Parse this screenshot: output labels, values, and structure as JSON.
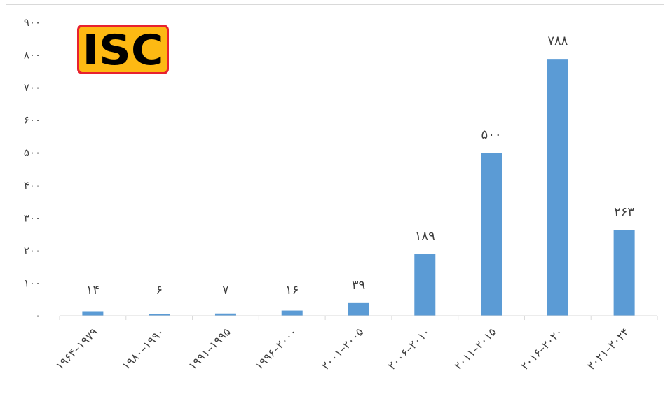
{
  "logo": {
    "text": "ISC",
    "fill": "#fdb913",
    "border": "#e8212e",
    "text_color": "#000000"
  },
  "chart_data": {
    "type": "bar",
    "title": "",
    "xlabel": "",
    "ylabel": "",
    "categories": [
      "۱۹۶۴–۱۹۷۹",
      "۱۹۸۰–۱۹۹۰",
      "۱۹۹۱–۱۹۹۵",
      "۱۹۹۶–۲۰۰۰",
      "۲۰۰۱–۲۰۰۵",
      "۲۰۰۶–۲۰۱۰",
      "۲۰۱۱–۲۰۱۵",
      "۲۰۱۶–۲۰۲۰",
      "۲۰۲۱–۲۰۲۴"
    ],
    "values": [
      14,
      6,
      7,
      16,
      39,
      189,
      500,
      788,
      263
    ],
    "value_labels": [
      "۱۴",
      "۶",
      "۷",
      "۱۶",
      "۳۹",
      "۱۸۹",
      "۵۰۰",
      "۷۸۸",
      "۲۶۳"
    ],
    "ylim": [
      0,
      900
    ],
    "yticks": [
      0,
      100,
      200,
      300,
      400,
      500,
      600,
      700,
      800,
      900
    ],
    "ytick_labels": [
      "۰",
      "۱۰۰",
      "۲۰۰",
      "۳۰۰",
      "۴۰۰",
      "۵۰۰",
      "۶۰۰",
      "۷۰۰",
      "۸۰۰",
      "۹۰۰"
    ],
    "grid": false,
    "legend": "none",
    "bar_color": "#5b9bd5"
  }
}
